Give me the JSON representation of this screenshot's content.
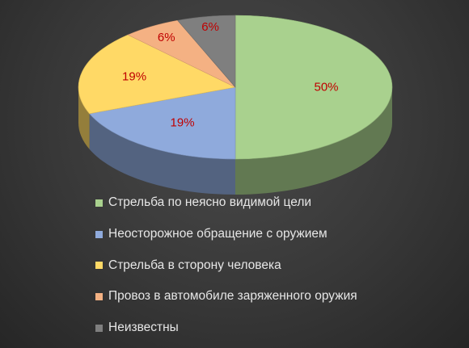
{
  "chart_data": {
    "type": "pie",
    "style": "3d",
    "categories": [
      "Стрельба по неясно видимой цели",
      "Неосторожное обращение с оружием",
      "Стрельба в сторону человека",
      "Провоз в автомобиле заряженного оружия",
      "Неизвестны"
    ],
    "values": [
      50,
      19,
      19,
      6,
      6
    ],
    "data_labels": [
      "50%",
      "19%",
      "19%",
      "6%",
      "6%"
    ],
    "colors": [
      "#a9d18e",
      "#8faadc",
      "#ffd966",
      "#f4b183",
      "#7f7f7f"
    ],
    "label_color": "#c00000",
    "legend_position": "bottom",
    "title": ""
  }
}
